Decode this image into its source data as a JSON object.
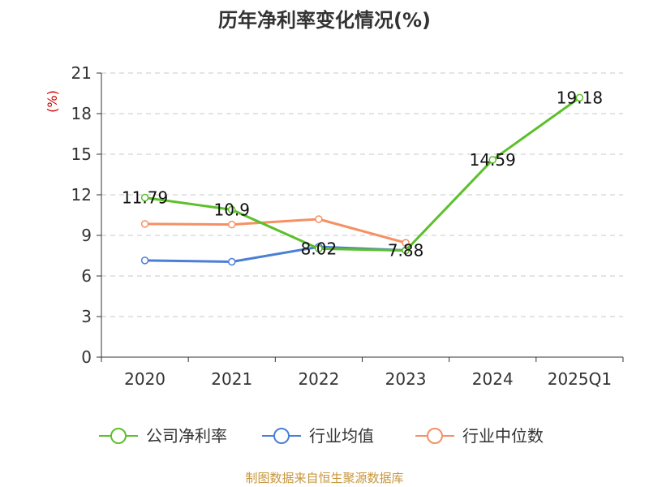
{
  "chart_data": {
    "type": "line",
    "title": "历年净利率变化情况(%)",
    "ylabel": "(%)",
    "xlabel": "",
    "categories": [
      "2020",
      "2021",
      "2022",
      "2023",
      "2024",
      "2025Q1"
    ],
    "ylim": [
      0,
      21
    ],
    "yticks": [
      0,
      3,
      6,
      9,
      12,
      15,
      18,
      21
    ],
    "grid": true,
    "legend_position": "bottom",
    "series": [
      {
        "name": "公司净利率",
        "color": "#5cc02b",
        "values": [
          11.79,
          10.9,
          8.02,
          7.88,
          14.59,
          19.18
        ],
        "labels": [
          "11.79",
          "10.9",
          "8.02",
          "7.88",
          "14.59",
          "19.18"
        ]
      },
      {
        "name": "行业均值",
        "color": "#4a7fd6",
        "values": [
          7.15,
          7.05,
          8.15,
          7.9,
          null,
          null
        ]
      },
      {
        "name": "行业中位数",
        "color": "#f59064",
        "values": [
          9.85,
          9.8,
          10.2,
          8.45,
          null,
          null
        ]
      }
    ]
  },
  "footer": {
    "source": "制图数据来自恒生聚源数据库"
  }
}
